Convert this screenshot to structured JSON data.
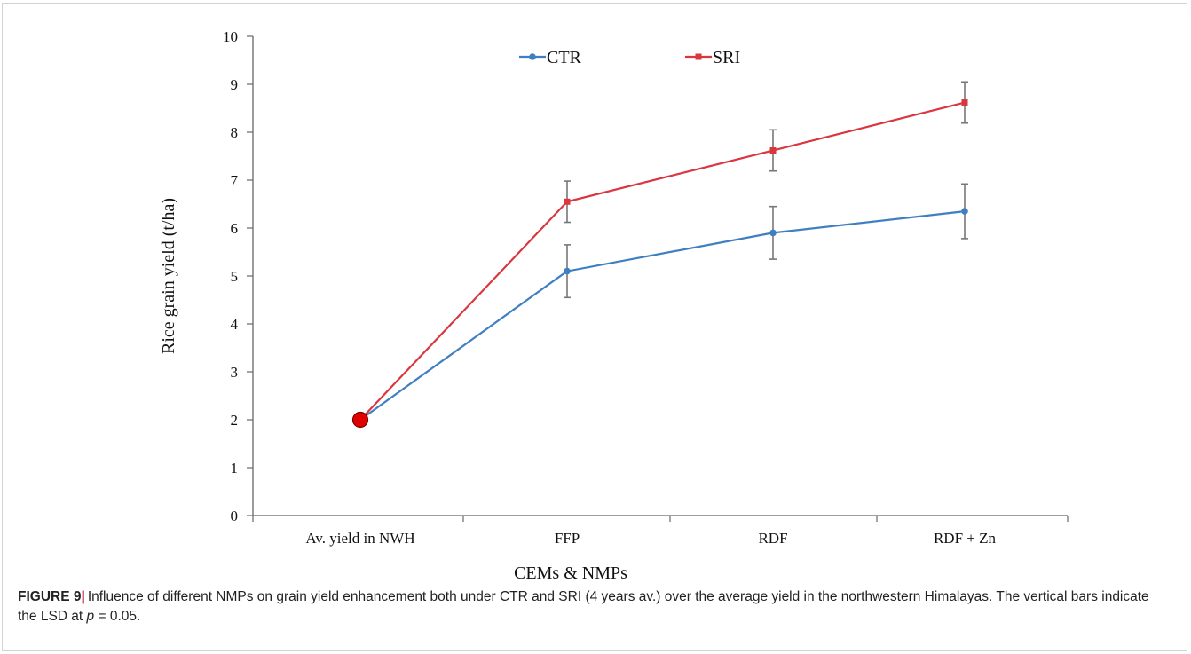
{
  "figure": {
    "label": "FIGURE 9",
    "caption_part1": "Influence of different NMPs on grain yield enhancement both under CTR and SRI (4 years av.) over the average yield in the northwestern Himalayas. The vertical bars indicate the LSD at ",
    "caption_p": "p",
    "caption_part2": " = 0.05."
  },
  "chart_data": {
    "type": "line",
    "title": "",
    "xlabel": "CEMs & NMPs",
    "ylabel": "Rice grain yield  (t/ha)",
    "categories": [
      "Av. yield in NWH",
      "FFP",
      "RDF",
      "RDF + Zn"
    ],
    "ylim": [
      0,
      10
    ],
    "yticks": [
      0,
      1,
      2,
      3,
      4,
      5,
      6,
      7,
      8,
      9,
      10
    ],
    "grid": false,
    "legend_position": "top-center",
    "series": [
      {
        "name": "CTR",
        "color": "#3f7fc1",
        "marker": "circle",
        "values": [
          2.0,
          5.1,
          5.9,
          6.35
        ],
        "error": [
          null,
          0.55,
          0.55,
          0.57
        ]
      },
      {
        "name": "SRI",
        "color": "#d9363e",
        "marker": "square",
        "values": [
          2.0,
          6.55,
          7.62,
          8.62
        ],
        "error": [
          null,
          0.43,
          0.43,
          0.43
        ]
      }
    ],
    "highlight_point": {
      "category": "Av. yield in NWH",
      "value": 2.0,
      "color": "#e00000"
    }
  }
}
